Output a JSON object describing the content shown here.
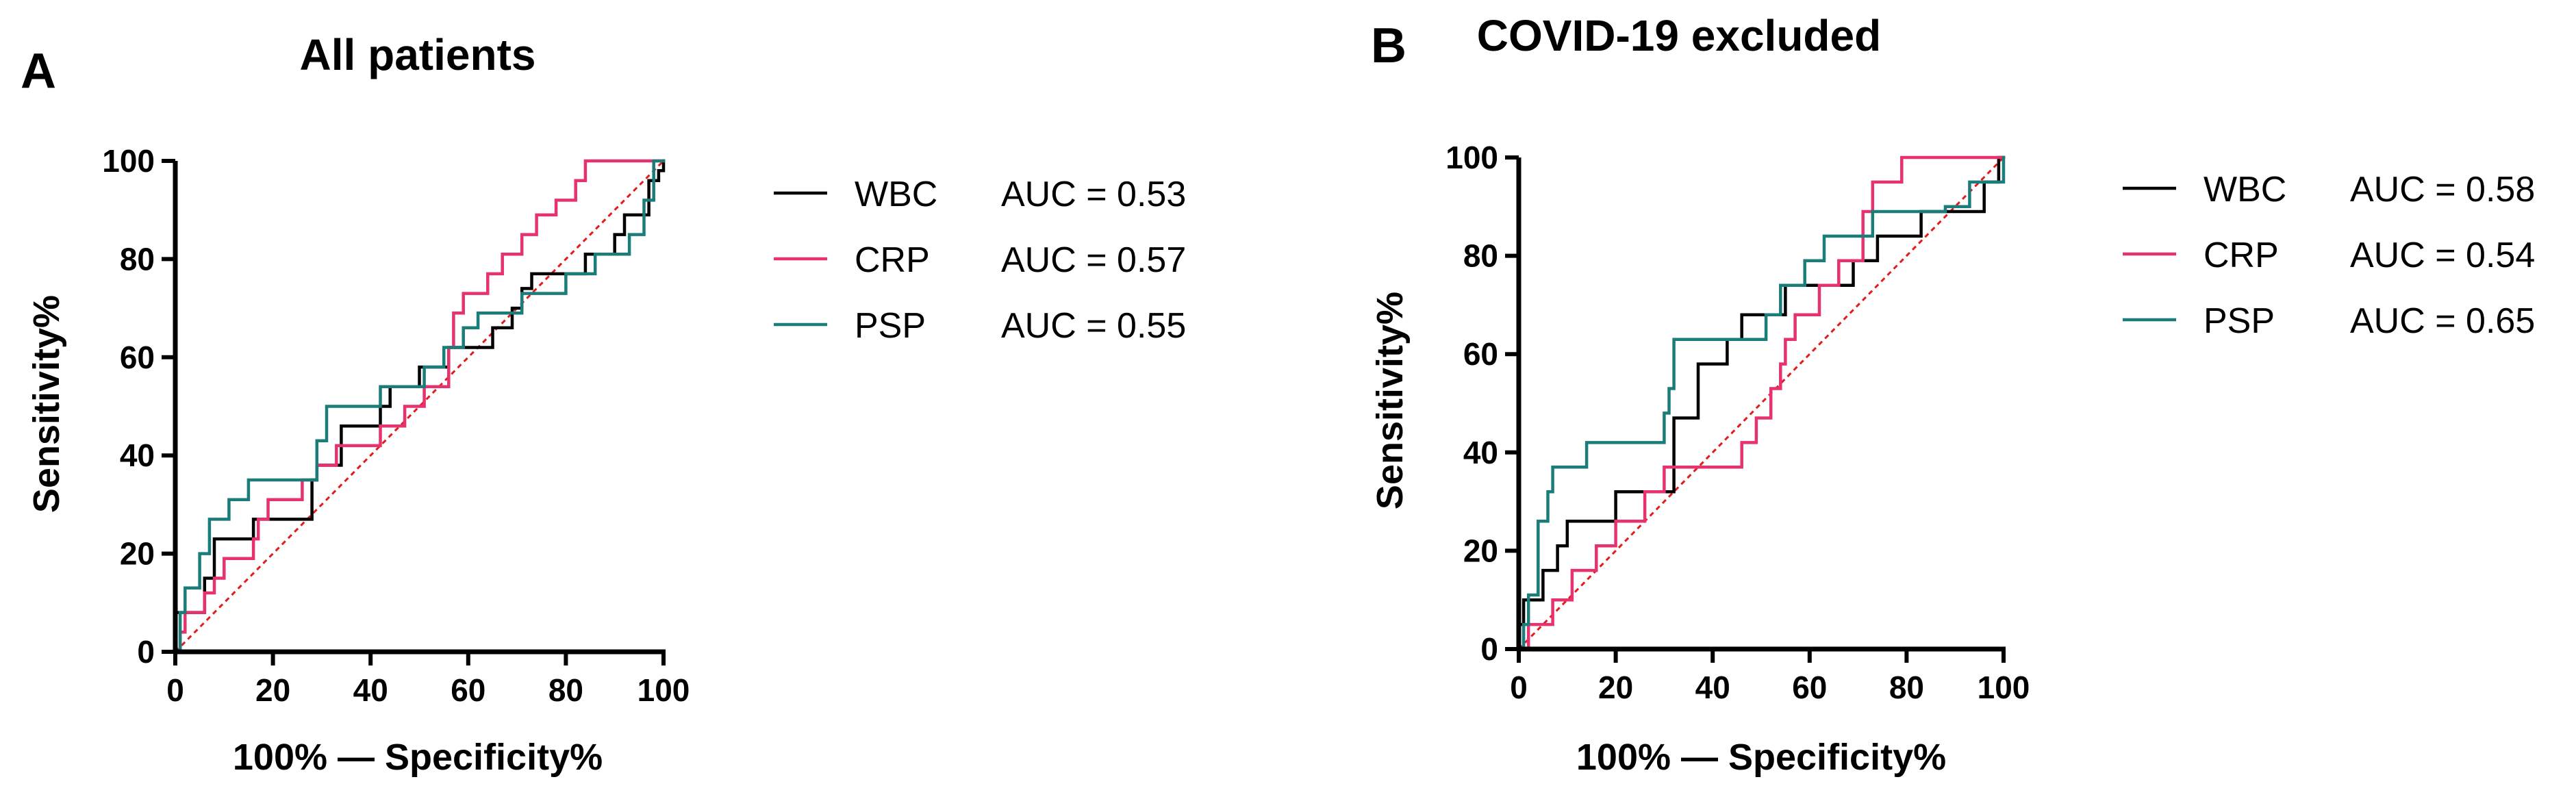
{
  "colors": {
    "WBC": "#000000",
    "CRP": "#e6326f",
    "PSP": "#1a7d7a",
    "diagonal": "#e41a1c"
  },
  "chart_data": [
    {
      "type": "line",
      "panel": "A",
      "title": "All patients",
      "xlabel": "100% — Specificity%",
      "ylabel": "Sensitivity%",
      "xlim": [
        0,
        100
      ],
      "ylim": [
        0,
        100
      ],
      "xticks": [
        "0",
        "20",
        "40",
        "60",
        "80",
        "100"
      ],
      "yticks": [
        "0",
        "20",
        "40",
        "60",
        "80",
        "100"
      ],
      "reference_line": [
        [
          0,
          0
        ],
        [
          100,
          100
        ]
      ],
      "series": [
        {
          "name": "WBC",
          "auc": "AUC = 0.53",
          "points": [
            [
              0,
              0
            ],
            [
              0,
              8
            ],
            [
              6,
              8
            ],
            [
              6,
              15
            ],
            [
              8,
              15
            ],
            [
              8,
              23
            ],
            [
              16,
              23
            ],
            [
              16,
              27
            ],
            [
              28,
              27
            ],
            [
              28,
              35
            ],
            [
              29,
              35
            ],
            [
              29,
              38
            ],
            [
              34,
              38
            ],
            [
              34,
              46
            ],
            [
              42,
              46
            ],
            [
              42,
              50
            ],
            [
              44,
              50
            ],
            [
              44,
              54
            ],
            [
              50,
              54
            ],
            [
              50,
              58
            ],
            [
              56,
              58
            ],
            [
              56,
              62
            ],
            [
              65,
              62
            ],
            [
              65,
              66
            ],
            [
              69,
              66
            ],
            [
              69,
              70
            ],
            [
              71,
              70
            ],
            [
              71,
              74
            ],
            [
              73,
              74
            ],
            [
              73,
              77
            ],
            [
              84,
              77
            ],
            [
              84,
              81
            ],
            [
              90,
              81
            ],
            [
              90,
              85
            ],
            [
              92,
              85
            ],
            [
              92,
              89
            ],
            [
              97,
              89
            ],
            [
              97,
              96
            ],
            [
              99,
              96
            ],
            [
              99,
              98
            ],
            [
              100,
              98
            ],
            [
              100,
              100
            ]
          ]
        },
        {
          "name": "CRP",
          "auc": "AUC = 0.57",
          "points": [
            [
              0,
              0
            ],
            [
              1,
              0
            ],
            [
              1,
              4
            ],
            [
              2,
              4
            ],
            [
              2,
              8
            ],
            [
              6,
              8
            ],
            [
              6,
              12
            ],
            [
              8,
              12
            ],
            [
              8,
              15
            ],
            [
              10,
              15
            ],
            [
              10,
              19
            ],
            [
              16,
              19
            ],
            [
              16,
              23
            ],
            [
              17,
              23
            ],
            [
              17,
              27
            ],
            [
              19,
              27
            ],
            [
              19,
              31
            ],
            [
              26,
              31
            ],
            [
              26,
              35
            ],
            [
              29,
              35
            ],
            [
              29,
              38
            ],
            [
              33,
              38
            ],
            [
              33,
              42
            ],
            [
              42,
              42
            ],
            [
              42,
              46
            ],
            [
              47,
              46
            ],
            [
              47,
              50
            ],
            [
              51,
              50
            ],
            [
              51,
              54
            ],
            [
              56,
              54
            ],
            [
              56,
              62
            ],
            [
              57,
              62
            ],
            [
              57,
              69
            ],
            [
              59,
              69
            ],
            [
              59,
              73
            ],
            [
              64,
              73
            ],
            [
              64,
              77
            ],
            [
              67,
              77
            ],
            [
              67,
              81
            ],
            [
              71,
              81
            ],
            [
              71,
              85
            ],
            [
              74,
              85
            ],
            [
              74,
              89
            ],
            [
              78,
              89
            ],
            [
              78,
              92
            ],
            [
              82,
              92
            ],
            [
              82,
              96
            ],
            [
              84,
              96
            ],
            [
              84,
              100
            ],
            [
              100,
              100
            ]
          ]
        },
        {
          "name": "PSP",
          "auc": "AUC = 0.55",
          "points": [
            [
              0,
              0
            ],
            [
              1,
              0
            ],
            [
              1,
              8
            ],
            [
              2,
              8
            ],
            [
              2,
              13
            ],
            [
              5,
              13
            ],
            [
              5,
              20
            ],
            [
              7,
              20
            ],
            [
              7,
              27
            ],
            [
              11,
              27
            ],
            [
              11,
              31
            ],
            [
              15,
              31
            ],
            [
              15,
              35
            ],
            [
              29,
              35
            ],
            [
              29,
              43
            ],
            [
              31,
              43
            ],
            [
              31,
              50
            ],
            [
              42,
              50
            ],
            [
              42,
              54
            ],
            [
              51,
              54
            ],
            [
              51,
              58
            ],
            [
              55,
              58
            ],
            [
              55,
              62
            ],
            [
              59,
              62
            ],
            [
              59,
              66
            ],
            [
              62,
              66
            ],
            [
              62,
              69
            ],
            [
              71,
              69
            ],
            [
              71,
              73
            ],
            [
              80,
              73
            ],
            [
              80,
              77
            ],
            [
              86,
              77
            ],
            [
              86,
              81
            ],
            [
              93,
              81
            ],
            [
              93,
              85
            ],
            [
              96,
              85
            ],
            [
              96,
              92
            ],
            [
              98,
              92
            ],
            [
              98,
              100
            ],
            [
              100,
              100
            ]
          ]
        }
      ]
    },
    {
      "type": "line",
      "panel": "B",
      "title": "COVID-19 excluded",
      "xlabel": "100% — Specificity%",
      "ylabel": "Sensitivity%",
      "xlim": [
        0,
        100
      ],
      "ylim": [
        0,
        100
      ],
      "xticks": [
        "0",
        "20",
        "40",
        "60",
        "80",
        "100"
      ],
      "yticks": [
        "0",
        "20",
        "40",
        "60",
        "80",
        "100"
      ],
      "reference_line": [
        [
          0,
          0
        ],
        [
          100,
          100
        ]
      ],
      "series": [
        {
          "name": "WBC",
          "auc": "AUC = 0.58",
          "points": [
            [
              0,
              0
            ],
            [
              0,
              5
            ],
            [
              1,
              5
            ],
            [
              1,
              10
            ],
            [
              5,
              10
            ],
            [
              5,
              16
            ],
            [
              8,
              16
            ],
            [
              8,
              21
            ],
            [
              10,
              21
            ],
            [
              10,
              26
            ],
            [
              20,
              26
            ],
            [
              20,
              32
            ],
            [
              32,
              32
            ],
            [
              32,
              47
            ],
            [
              37,
              47
            ],
            [
              37,
              58
            ],
            [
              43,
              58
            ],
            [
              43,
              63
            ],
            [
              46,
              63
            ],
            [
              46,
              68
            ],
            [
              55,
              68
            ],
            [
              55,
              74
            ],
            [
              69,
              74
            ],
            [
              69,
              79
            ],
            [
              74,
              79
            ],
            [
              74,
              84
            ],
            [
              83,
              84
            ],
            [
              83,
              89
            ],
            [
              96,
              89
            ],
            [
              96,
              95
            ],
            [
              99,
              95
            ],
            [
              99,
              100
            ],
            [
              100,
              100
            ]
          ]
        },
        {
          "name": "CRP",
          "auc": "AUC = 0.54",
          "points": [
            [
              0,
              0
            ],
            [
              2,
              0
            ],
            [
              2,
              5
            ],
            [
              7,
              5
            ],
            [
              7,
              10
            ],
            [
              11,
              10
            ],
            [
              11,
              16
            ],
            [
              16,
              16
            ],
            [
              16,
              21
            ],
            [
              20,
              21
            ],
            [
              20,
              26
            ],
            [
              26,
              26
            ],
            [
              26,
              32
            ],
            [
              30,
              32
            ],
            [
              30,
              37
            ],
            [
              46,
              37
            ],
            [
              46,
              42
            ],
            [
              49,
              42
            ],
            [
              49,
              47
            ],
            [
              52,
              47
            ],
            [
              52,
              53
            ],
            [
              54,
              53
            ],
            [
              54,
              58
            ],
            [
              55,
              58
            ],
            [
              55,
              63
            ],
            [
              57,
              63
            ],
            [
              57,
              68
            ],
            [
              62,
              68
            ],
            [
              62,
              74
            ],
            [
              66,
              74
            ],
            [
              66,
              79
            ],
            [
              71,
              79
            ],
            [
              71,
              89
            ],
            [
              73,
              89
            ],
            [
              73,
              95
            ],
            [
              79,
              95
            ],
            [
              79,
              100
            ],
            [
              100,
              100
            ]
          ]
        },
        {
          "name": "PSP",
          "auc": "AUC = 0.65",
          "points": [
            [
              0,
              0
            ],
            [
              1,
              0
            ],
            [
              1,
              5
            ],
            [
              2,
              5
            ],
            [
              2,
              11
            ],
            [
              4,
              11
            ],
            [
              4,
              26
            ],
            [
              6,
              26
            ],
            [
              6,
              32
            ],
            [
              7,
              32
            ],
            [
              7,
              37
            ],
            [
              14,
              37
            ],
            [
              14,
              42
            ],
            [
              30,
              42
            ],
            [
              30,
              48
            ],
            [
              31,
              48
            ],
            [
              31,
              53
            ],
            [
              32,
              53
            ],
            [
              32,
              63
            ],
            [
              51,
              63
            ],
            [
              51,
              68
            ],
            [
              54,
              68
            ],
            [
              54,
              74
            ],
            [
              59,
              74
            ],
            [
              59,
              79
            ],
            [
              63,
              79
            ],
            [
              63,
              84
            ],
            [
              73,
              84
            ],
            [
              73,
              89
            ],
            [
              88,
              89
            ],
            [
              88,
              90
            ],
            [
              93,
              90
            ],
            [
              93,
              95
            ],
            [
              100,
              95
            ],
            [
              100,
              100
            ]
          ]
        }
      ]
    }
  ]
}
